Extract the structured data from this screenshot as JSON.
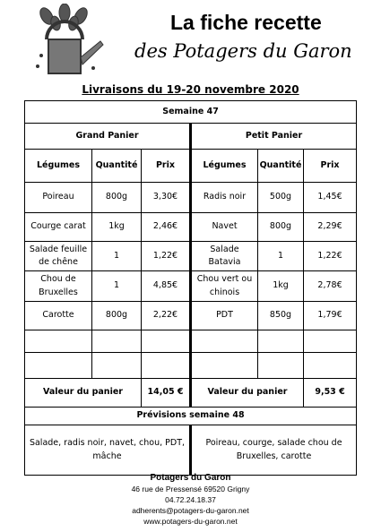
{
  "header": {
    "title": "La fiche recette",
    "subtitle": "des Potagers du Garon",
    "delivery": "Livraisons du 19-20 novembre 2020"
  },
  "table": {
    "week": "Semaine 47",
    "panels": [
      "Grand Panier",
      "Petit Panier"
    ],
    "columns": [
      "Légumes",
      "Quantité",
      "Prix",
      "Légumes",
      "Quantité",
      "Prix"
    ],
    "rows": [
      [
        "Poireau",
        "800g",
        "3,30€",
        "Radis noir",
        "500g",
        "1,45€"
      ],
      [
        "Courge carat",
        "1kg",
        "2,46€",
        "Navet",
        "800g",
        "2,29€"
      ],
      [
        "Salade feuille de chêne",
        "1",
        "1,22€",
        "Salade Batavia",
        "1",
        "1,22€"
      ],
      [
        "Chou de Bruxelles",
        "1",
        "4,85€",
        "Chou vert ou chinois",
        "1kg",
        "2,78€"
      ],
      [
        "Carotte",
        "800g",
        "2,22€",
        "PDT",
        "850g",
        "1,79€"
      ]
    ],
    "totals": [
      {
        "label": "Valeur du panier",
        "value": "14,05 €"
      },
      {
        "label": "Valeur du panier",
        "value": "9,53 €"
      }
    ],
    "forecast_title": "Prévisions semaine 48",
    "forecast": [
      "Salade, radis noir, navet, chou, PDT, mâche",
      "Poireau, courge, salade chou de Bruxelles, carotte"
    ]
  },
  "footer": {
    "name": "Potagers du Garon",
    "address": "46 rue de Pressensé 69520 Grigny",
    "phone": "04.72.24.18.37",
    "email": "adherents@potagers-du-garon.net",
    "web": "www.potagers-du-garon.net"
  }
}
